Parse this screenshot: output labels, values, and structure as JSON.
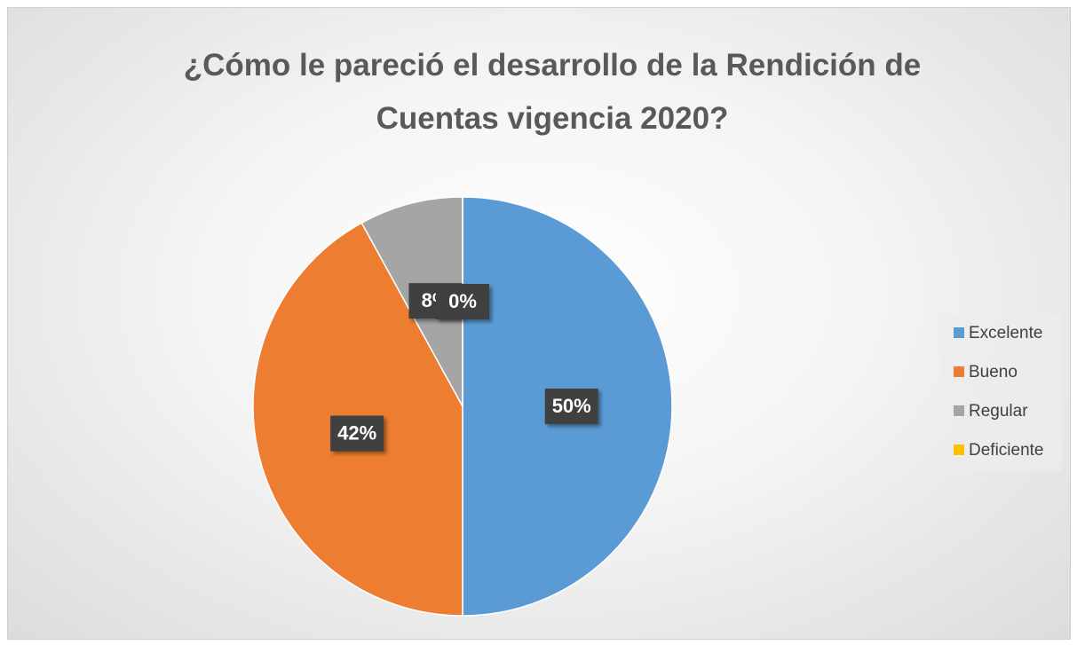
{
  "chart_data": {
    "type": "pie",
    "title": "¿Cómo le pareció el desarrollo de la Rendición de Cuentas vigencia 2020?",
    "categories": [
      "Excelente",
      "Bueno",
      "Regular",
      "Deficiente"
    ],
    "values": [
      50,
      42,
      8,
      0
    ],
    "value_labels": [
      "50%",
      "42%",
      "8%",
      "0%"
    ],
    "colors": [
      "#5b9bd5",
      "#ed7d31",
      "#a5a5a5",
      "#ffc000"
    ],
    "legend": "right"
  }
}
